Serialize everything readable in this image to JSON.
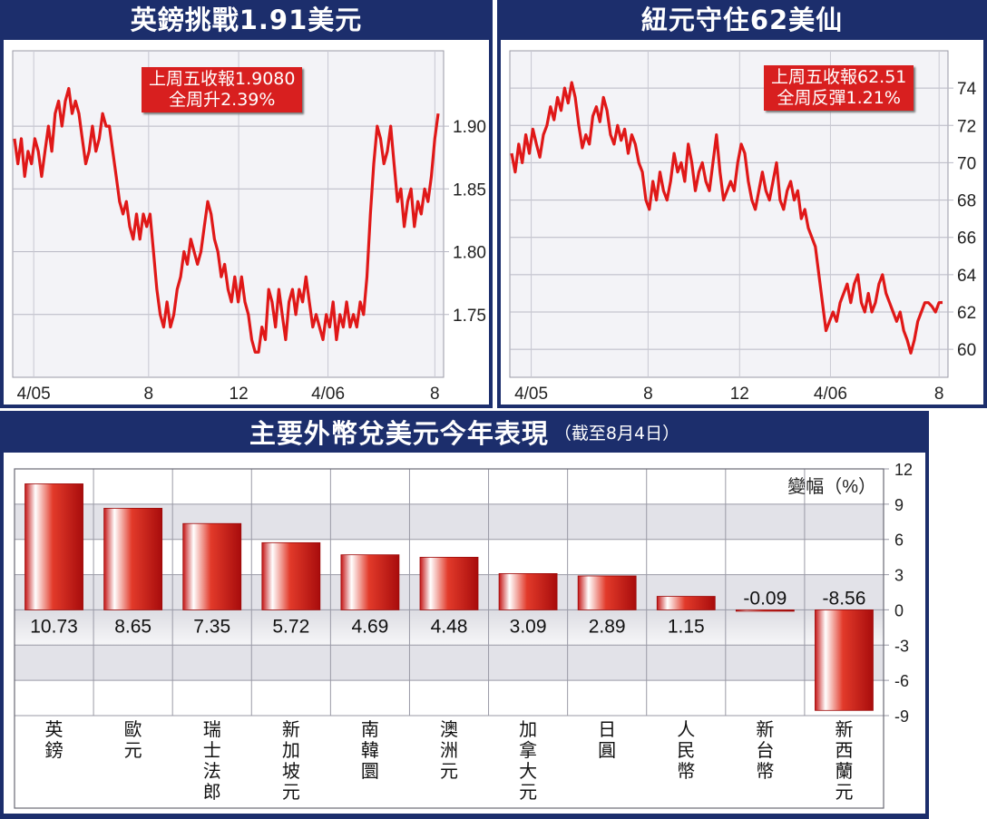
{
  "colors": {
    "navy": "#1c2e6c",
    "line": "#e01818",
    "callout": "#d81f1f",
    "bar_dark": "#b80f0f",
    "bar_light": "#ffffff"
  },
  "left_panel": {
    "title": "英鎊挑戰1.91美元",
    "callout_line1": "上周五收報1.9080",
    "callout_line2": "全周升2.39%"
  },
  "right_panel": {
    "title": "紐元守住62美仙",
    "callout_line1": "上周五收報62.51",
    "callout_line2": "全周反彈1.21%"
  },
  "bottom_panel": {
    "title": "主要外幣兌美元今年表現",
    "subtitle": "（截至8月4日）",
    "unit_label": "變幅（%）"
  },
  "chart_data": [
    {
      "type": "line",
      "y_axis_side": "right",
      "ylim": [
        1.7,
        1.96
      ],
      "y_ticks": [
        1.75,
        1.8,
        1.85,
        1.9
      ],
      "y_tick_labels": [
        "1.75",
        "1.80",
        "1.85",
        "1.90"
      ],
      "x_ticks": [
        5,
        42,
        68,
        93
      ],
      "x_tick_labels": [
        "4/05",
        "8",
        "12",
        "4/06",
        "8"
      ],
      "x_tick_positions": [
        6,
        38.8,
        64.5,
        90,
        120.5
      ],
      "x_range": [
        0,
        123
      ],
      "grid": true,
      "series": [
        {
          "values": [
            1.89,
            1.87,
            1.89,
            1.86,
            1.88,
            1.87,
            1.89,
            1.88,
            1.86,
            1.88,
            1.9,
            1.88,
            1.91,
            1.92,
            1.9,
            1.92,
            1.93,
            1.91,
            1.92,
            1.91,
            1.89,
            1.87,
            1.88,
            1.9,
            1.88,
            1.89,
            1.91,
            1.9,
            1.9,
            1.88,
            1.86,
            1.84,
            1.83,
            1.84,
            1.82,
            1.81,
            1.83,
            1.81,
            1.83,
            1.82,
            1.83,
            1.8,
            1.77,
            1.75,
            1.74,
            1.76,
            1.74,
            1.75,
            1.77,
            1.78,
            1.8,
            1.79,
            1.81,
            1.8,
            1.79,
            1.8,
            1.82,
            1.84,
            1.83,
            1.81,
            1.8,
            1.78,
            1.79,
            1.77,
            1.76,
            1.78,
            1.76,
            1.78,
            1.76,
            1.75,
            1.73,
            1.72,
            1.72,
            1.74,
            1.73,
            1.77,
            1.76,
            1.74,
            1.77,
            1.75,
            1.73,
            1.76,
            1.77,
            1.75,
            1.77,
            1.76,
            1.78,
            1.76,
            1.74,
            1.75,
            1.74,
            1.73,
            1.75,
            1.74,
            1.76,
            1.73,
            1.75,
            1.74,
            1.76,
            1.74,
            1.75,
            1.74,
            1.76,
            1.75,
            1.78,
            1.83,
            1.87,
            1.9,
            1.89,
            1.87,
            1.88,
            1.9,
            1.87,
            1.84,
            1.85,
            1.82,
            1.84,
            1.85,
            1.82,
            1.84,
            1.83,
            1.85,
            1.84,
            1.86,
            1.89,
            1.91
          ]
        }
      ]
    },
    {
      "type": "line",
      "y_axis_side": "right",
      "ylim": [
        58.5,
        76
      ],
      "y_ticks": [
        60,
        62,
        64,
        66,
        68,
        70,
        72,
        74
      ],
      "y_tick_labels": [
        "60",
        "62",
        "64",
        "66",
        "68",
        "70",
        "72",
        "74"
      ],
      "x_tick_labels": [
        "4/05",
        "8",
        "12",
        "4/06",
        "8"
      ],
      "x_tick_positions": [
        6,
        38.8,
        64.5,
        90,
        120.5
      ],
      "x_range": [
        0,
        123
      ],
      "grid": true,
      "series": [
        {
          "values": [
            70.5,
            69.5,
            71.0,
            70.0,
            71.5,
            70.5,
            71.8,
            71.0,
            70.3,
            71.5,
            72.0,
            73.0,
            72.3,
            73.5,
            72.8,
            74.0,
            73.2,
            74.3,
            73.5,
            72.0,
            70.8,
            71.5,
            71.0,
            72.5,
            73.0,
            72.2,
            73.5,
            72.8,
            71.5,
            71.0,
            72.0,
            71.2,
            71.8,
            70.5,
            71.5,
            71.0,
            70.0,
            69.5,
            68.0,
            67.5,
            69.0,
            68.0,
            69.5,
            68.5,
            68.0,
            69.0,
            70.5,
            69.5,
            70.0,
            69.0,
            71.0,
            70.0,
            68.5,
            69.5,
            70.0,
            69.0,
            68.5,
            70.0,
            71.5,
            69.5,
            68.0,
            68.5,
            69.0,
            68.5,
            70.0,
            71.0,
            70.5,
            69.0,
            68.0,
            67.5,
            68.5,
            69.5,
            68.5,
            68.0,
            69.0,
            70.0,
            68.0,
            67.5,
            68.5,
            69.0,
            68.0,
            68.5,
            67.0,
            67.5,
            66.5,
            66.0,
            65.5,
            64.0,
            62.5,
            61.0,
            61.5,
            62.0,
            61.5,
            62.5,
            63.0,
            63.5,
            62.5,
            63.5,
            64.0,
            62.5,
            62.0,
            63.0,
            62.0,
            62.5,
            63.5,
            64.0,
            63.0,
            62.5,
            62.0,
            61.5,
            62.0,
            61.0,
            60.5,
            59.8,
            60.5,
            61.5,
            62.0,
            62.5,
            62.5,
            62.3,
            62.0,
            62.5,
            62.51
          ]
        }
      ]
    },
    {
      "type": "bar",
      "categories": [
        "英鎊",
        "歐元",
        "瑞士法郎",
        "新加坡元",
        "南韓圜",
        "澳洲元",
        "加拿大元",
        "日圓",
        "人民幣",
        "新台幣",
        "新西蘭元"
      ],
      "values": [
        10.73,
        8.65,
        7.35,
        5.72,
        4.69,
        4.48,
        3.09,
        2.89,
        1.15,
        -0.09,
        -8.56
      ],
      "value_labels": [
        "10.73",
        "8.65",
        "7.35",
        "5.72",
        "4.69",
        "4.48",
        "3.09",
        "2.89",
        "1.15",
        "-0.09",
        "-8.56"
      ],
      "ylabel": "變幅（%）",
      "ylim": [
        -9,
        12
      ],
      "y_ticks": [
        12,
        9,
        6,
        3,
        0,
        -3,
        -6,
        -9
      ],
      "y_tick_labels": [
        "12",
        "9",
        "6",
        "3",
        "0",
        "-3",
        "-6",
        "-9"
      ],
      "grid": true
    }
  ]
}
